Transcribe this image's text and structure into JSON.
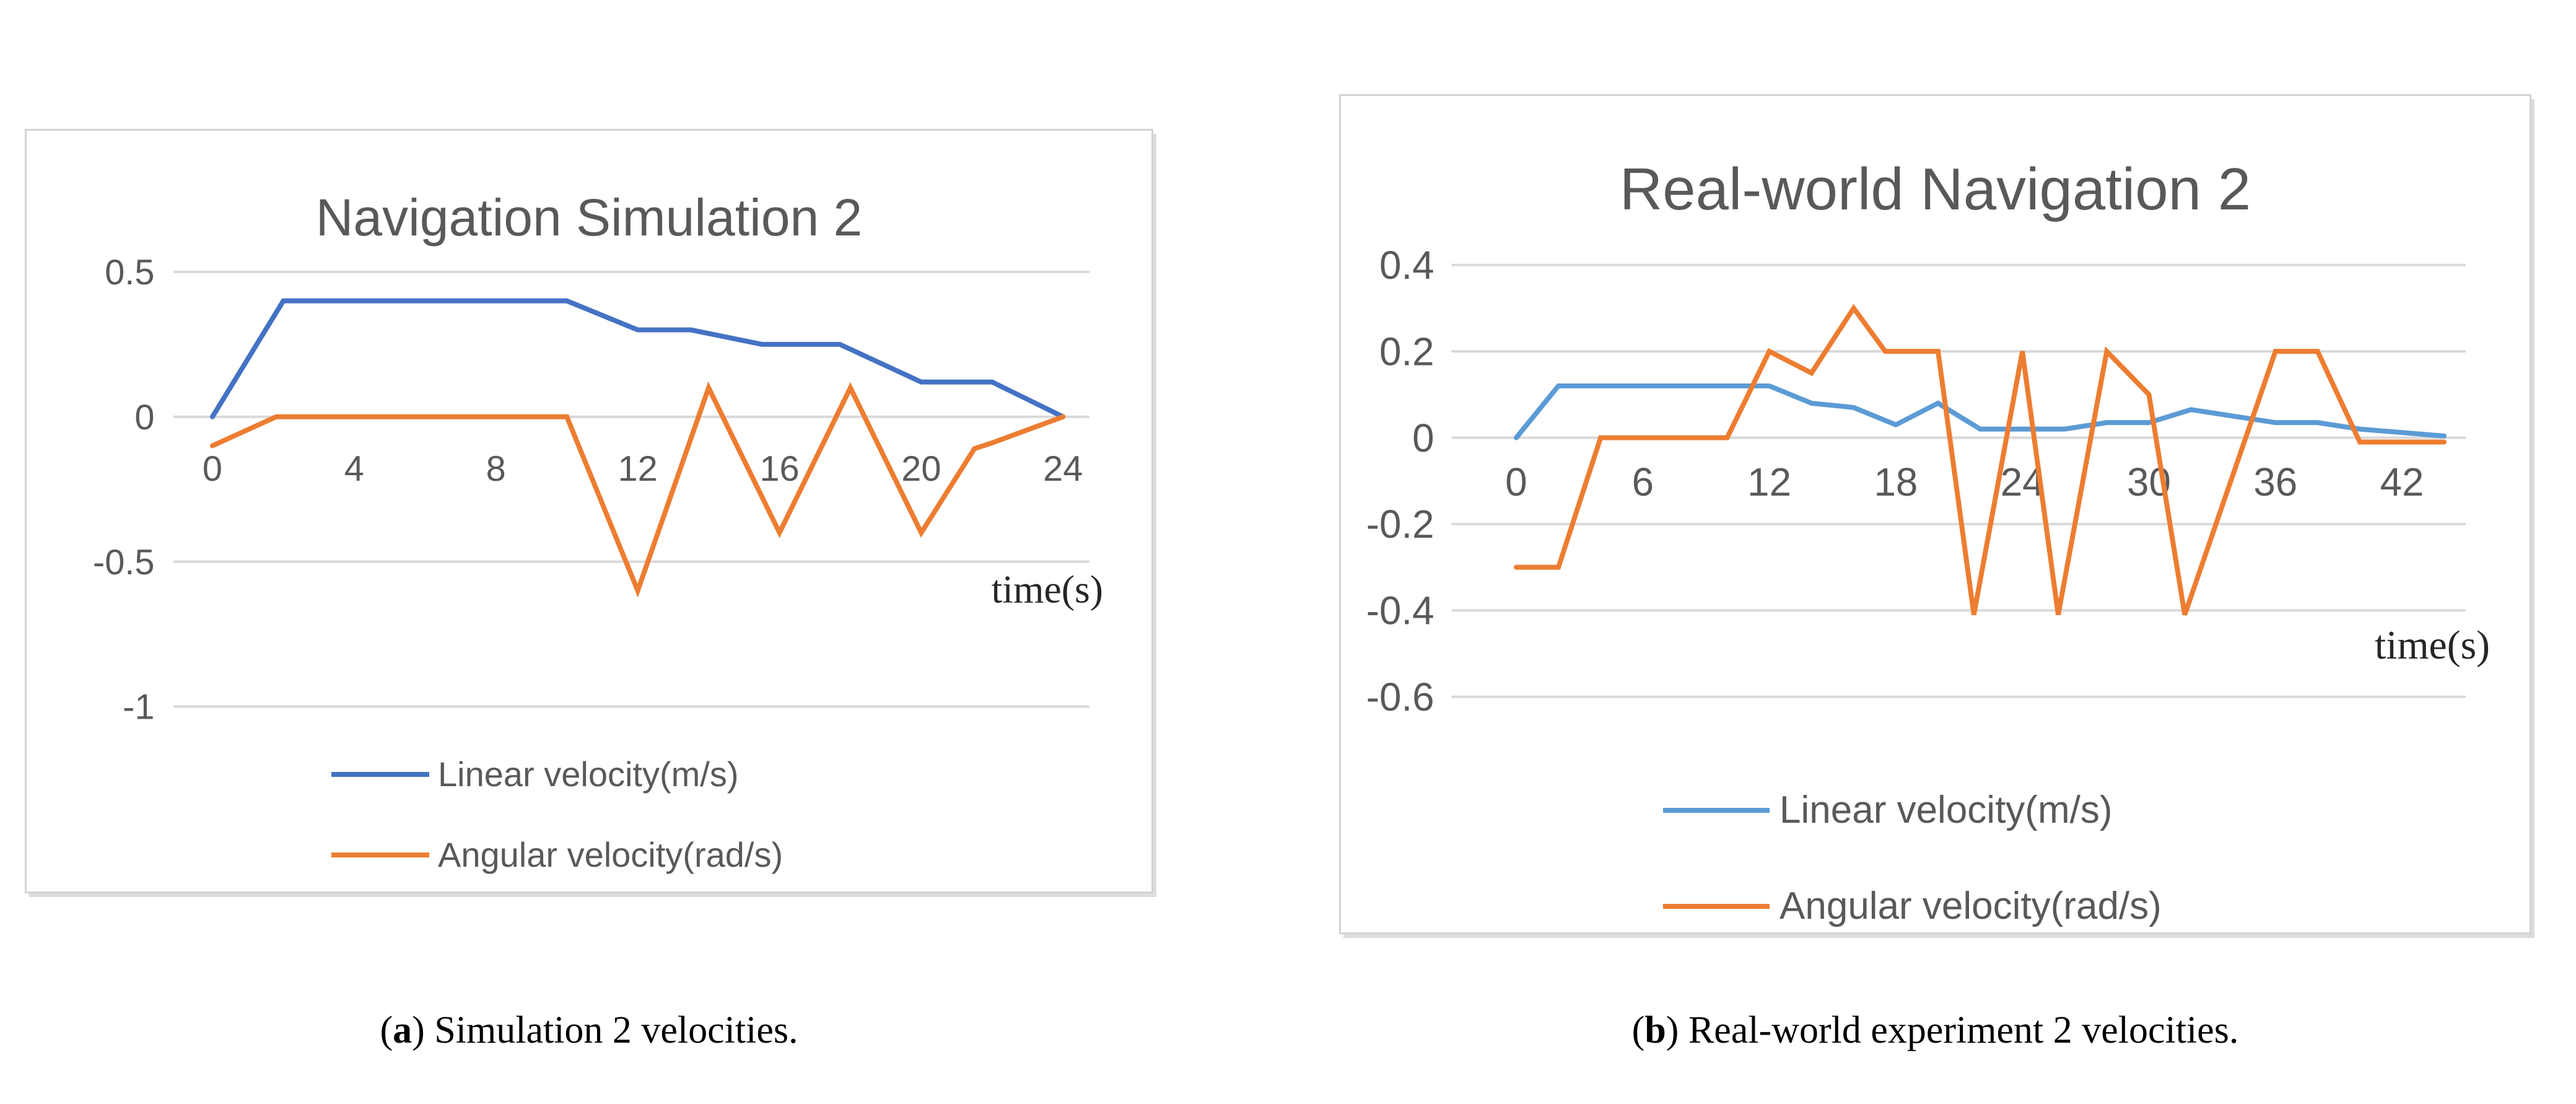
{
  "page": {
    "background": "#FFFFFF"
  },
  "chart_data": [
    {
      "id": "simulation-2",
      "type": "line",
      "title": "Navigation Simulation 2",
      "xlabel": "time(s)",
      "ylabel": "",
      "x_ticks": [
        0,
        4,
        8,
        12,
        16,
        20,
        24
      ],
      "y_tick_labels": [
        "0.5",
        "0",
        "-0.5",
        "-1"
      ],
      "y_tick_values": [
        0.5,
        0,
        -0.5,
        -1
      ],
      "xlim": [
        0,
        24
      ],
      "ylim": [
        -1.15,
        0.62
      ],
      "grid": true,
      "legend_position": "bottom",
      "series": [
        {
          "name": "Linear velocity(m/s)",
          "color": "#4472C4",
          "points": [
            [
              0,
              0
            ],
            [
              2,
              0.4
            ],
            [
              10,
              0.4
            ],
            [
              12,
              0.3
            ],
            [
              13.5,
              0.3
            ],
            [
              15.5,
              0.25
            ],
            [
              17.7,
              0.25
            ],
            [
              20,
              0.12
            ],
            [
              22,
              0.12
            ],
            [
              24,
              0
            ]
          ]
        },
        {
          "name": "Angular velocity(rad/s)",
          "color": "#ED7D31",
          "points": [
            [
              0,
              -0.1
            ],
            [
              1.8,
              0
            ],
            [
              10,
              0
            ],
            [
              12,
              -0.6
            ],
            [
              14,
              0.1
            ],
            [
              16,
              -0.4
            ],
            [
              18,
              0.1
            ],
            [
              20,
              -0.4
            ],
            [
              21.5,
              -0.11
            ],
            [
              22,
              -0.09
            ],
            [
              24,
              0
            ]
          ]
        }
      ],
      "caption": {
        "open": "(",
        "letter": "a",
        "rest": ") Simulation 2 velocities."
      }
    },
    {
      "id": "real-world-2",
      "type": "line",
      "title": "Real-world Navigation 2",
      "xlabel": "time(s)",
      "ylabel": "",
      "x_ticks": [
        0,
        6,
        12,
        18,
        24,
        30,
        36,
        42
      ],
      "y_tick_labels": [
        "0.4",
        "0.2",
        "0",
        "-0.2",
        "-0.4",
        "-0.6"
      ],
      "y_tick_values": [
        0.4,
        0.2,
        0,
        -0.2,
        -0.4,
        -0.6
      ],
      "xlim": [
        0,
        44
      ],
      "ylim": [
        -0.68,
        0.48
      ],
      "grid": true,
      "legend_position": "bottom",
      "series": [
        {
          "name": "Linear velocity(m/s)",
          "color": "#5B9BD5",
          "points": [
            [
              0,
              0
            ],
            [
              2,
              0.12
            ],
            [
              12,
              0.12
            ],
            [
              14,
              0.08
            ],
            [
              16,
              0.07
            ],
            [
              18,
              0.03
            ],
            [
              20,
              0.08
            ],
            [
              22,
              0.02
            ],
            [
              26,
              0.02
            ],
            [
              28,
              0.035
            ],
            [
              30,
              0.035
            ],
            [
              32,
              0.065
            ],
            [
              34,
              0.05
            ],
            [
              36,
              0.035
            ],
            [
              38,
              0.035
            ],
            [
              40,
              0.02
            ],
            [
              42,
              0.012
            ],
            [
              44,
              0.004
            ]
          ]
        },
        {
          "name": "Angular velocity(rad/s)",
          "color": "#ED7D31",
          "points": [
            [
              0,
              -0.3
            ],
            [
              2,
              -0.3
            ],
            [
              4,
              0
            ],
            [
              10,
              0
            ],
            [
              12,
              0.2
            ],
            [
              14,
              0.15
            ],
            [
              16,
              0.3
            ],
            [
              17.5,
              0.2
            ],
            [
              20,
              0.2
            ],
            [
              21.7,
              -0.41
            ],
            [
              24,
              0.2
            ],
            [
              25.7,
              -0.41
            ],
            [
              28,
              0.2
            ],
            [
              30,
              0.1
            ],
            [
              31.7,
              -0.41
            ],
            [
              36,
              0.2
            ],
            [
              38,
              0.2
            ],
            [
              40,
              -0.01
            ],
            [
              44,
              -0.01
            ]
          ]
        }
      ],
      "caption": {
        "open": "(",
        "letter": "b",
        "rest": ") Real-world experiment 2 velocities."
      }
    }
  ]
}
